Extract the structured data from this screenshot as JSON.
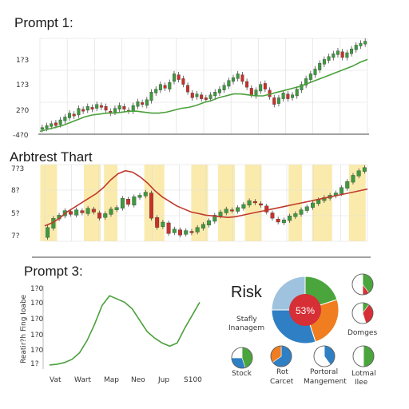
{
  "colors": {
    "up": "#3f9a3f",
    "down": "#c8312b",
    "trend_green": "#4aa03a",
    "trend_red": "#c0392b",
    "highlight": "#f9e79f",
    "grid": "#dddddd",
    "pie_blue": "#2f7fc4",
    "pie_lightblue": "#9fc3df",
    "pie_green": "#4aa63c",
    "pie_orange": "#f07d1f",
    "pie_red": "#d62f36"
  },
  "chart_data": [
    {
      "type": "candlestick",
      "title": "Prompt 1:",
      "ytick_labels": [
        "1?3",
        "1?3",
        "2?0",
        "-4?0"
      ],
      "ylim": [
        0,
        100
      ],
      "candles": [
        {
          "o": 5,
          "c": 7
        },
        {
          "o": 6,
          "c": 9
        },
        {
          "o": 8,
          "c": 11
        },
        {
          "o": 12,
          "c": 9
        },
        {
          "o": 10,
          "c": 15
        },
        {
          "o": 14,
          "c": 18
        },
        {
          "o": 17,
          "c": 22
        },
        {
          "o": 21,
          "c": 19
        },
        {
          "o": 20,
          "c": 27
        },
        {
          "o": 26,
          "c": 24
        },
        {
          "o": 25,
          "c": 29
        },
        {
          "o": 28,
          "c": 26
        },
        {
          "o": 27,
          "c": 31
        },
        {
          "o": 30,
          "c": 28
        },
        {
          "o": 29,
          "c": 25
        },
        {
          "o": 24,
          "c": 22
        },
        {
          "o": 23,
          "c": 27
        },
        {
          "o": 26,
          "c": 30
        },
        {
          "o": 29,
          "c": 26
        },
        {
          "o": 25,
          "c": 24
        },
        {
          "o": 24,
          "c": 30
        },
        {
          "o": 29,
          "c": 34
        },
        {
          "o": 33,
          "c": 31
        },
        {
          "o": 30,
          "c": 36
        },
        {
          "o": 35,
          "c": 44
        },
        {
          "o": 43,
          "c": 47
        },
        {
          "o": 46,
          "c": 52
        },
        {
          "o": 51,
          "c": 48
        },
        {
          "o": 47,
          "c": 54
        },
        {
          "o": 55,
          "c": 63
        },
        {
          "o": 62,
          "c": 57
        },
        {
          "o": 58,
          "c": 52
        },
        {
          "o": 51,
          "c": 44
        },
        {
          "o": 43,
          "c": 38
        },
        {
          "o": 39,
          "c": 42
        },
        {
          "o": 41,
          "c": 37
        },
        {
          "o": 38,
          "c": 36
        },
        {
          "o": 37,
          "c": 41
        },
        {
          "o": 40,
          "c": 44
        },
        {
          "o": 43,
          "c": 47
        },
        {
          "o": 46,
          "c": 51
        },
        {
          "o": 50,
          "c": 56
        },
        {
          "o": 55,
          "c": 59
        },
        {
          "o": 58,
          "c": 63
        },
        {
          "o": 62,
          "c": 55
        },
        {
          "o": 55,
          "c": 49
        },
        {
          "o": 48,
          "c": 41
        },
        {
          "o": 40,
          "c": 46
        },
        {
          "o": 45,
          "c": 52
        },
        {
          "o": 53,
          "c": 47
        },
        {
          "o": 46,
          "c": 39
        },
        {
          "o": 38,
          "c": 31
        },
        {
          "o": 32,
          "c": 38
        },
        {
          "o": 37,
          "c": 43
        },
        {
          "o": 42,
          "c": 37
        },
        {
          "o": 38,
          "c": 41
        },
        {
          "o": 40,
          "c": 47
        },
        {
          "o": 46,
          "c": 52
        },
        {
          "o": 51,
          "c": 58
        },
        {
          "o": 57,
          "c": 63
        },
        {
          "o": 62,
          "c": 68
        },
        {
          "o": 67,
          "c": 74
        },
        {
          "o": 73,
          "c": 78
        },
        {
          "o": 77,
          "c": 81
        },
        {
          "o": 80,
          "c": 84
        },
        {
          "o": 83,
          "c": 87
        },
        {
          "o": 86,
          "c": 80
        },
        {
          "o": 80,
          "c": 85
        },
        {
          "o": 84,
          "c": 89
        },
        {
          "o": 88,
          "c": 93
        },
        {
          "o": 92,
          "c": 95
        },
        {
          "o": 94,
          "c": 97
        }
      ],
      "trend": [
        3,
        5,
        7,
        9,
        12,
        15,
        18,
        20,
        21,
        22,
        22,
        23,
        24,
        24,
        23,
        22,
        22,
        23,
        25,
        27,
        28,
        30,
        33,
        35,
        38,
        40,
        42,
        42,
        41,
        40,
        40,
        42,
        44,
        46,
        48,
        50,
        53,
        56,
        59,
        62,
        65,
        68,
        71,
        75,
        78
      ]
    },
    {
      "type": "candlestick",
      "title": "Arbtrest Thart",
      "ytick_labels": [
        "7?3",
        "8?",
        "5?",
        "7?"
      ],
      "ylim": [
        0,
        100
      ],
      "highlight_bands": [
        [
          0.02,
          0.07
        ],
        [
          0.15,
          0.2
        ],
        [
          0.21,
          0.25
        ],
        [
          0.33,
          0.39
        ],
        [
          0.47,
          0.52
        ],
        [
          0.55,
          0.6
        ],
        [
          0.63,
          0.68
        ],
        [
          0.76,
          0.8
        ],
        [
          0.83,
          0.89
        ],
        [
          0.94,
          0.99
        ]
      ],
      "candles": [
        {
          "o": 5,
          "c": 18
        },
        {
          "o": 17,
          "c": 30
        },
        {
          "o": 29,
          "c": 34
        },
        {
          "o": 33,
          "c": 40
        },
        {
          "o": 39,
          "c": 35
        },
        {
          "o": 34,
          "c": 41
        },
        {
          "o": 40,
          "c": 37
        },
        {
          "o": 36,
          "c": 43
        },
        {
          "o": 42,
          "c": 38
        },
        {
          "o": 37,
          "c": 30
        },
        {
          "o": 31,
          "c": 36
        },
        {
          "o": 35,
          "c": 42
        },
        {
          "o": 41,
          "c": 44
        },
        {
          "o": 43,
          "c": 56
        },
        {
          "o": 55,
          "c": 48
        },
        {
          "o": 47,
          "c": 58
        },
        {
          "o": 57,
          "c": 60
        },
        {
          "o": 59,
          "c": 64
        },
        {
          "o": 63,
          "c": 30
        },
        {
          "o": 31,
          "c": 18
        },
        {
          "o": 19,
          "c": 25
        },
        {
          "o": 24,
          "c": 10
        },
        {
          "o": 11,
          "c": 16
        },
        {
          "o": 15,
          "c": 8
        },
        {
          "o": 9,
          "c": 14
        },
        {
          "o": 13,
          "c": 11
        },
        {
          "o": 12,
          "c": 18
        },
        {
          "o": 17,
          "c": 22
        },
        {
          "o": 21,
          "c": 27
        },
        {
          "o": 26,
          "c": 34
        },
        {
          "o": 33,
          "c": 38
        },
        {
          "o": 37,
          "c": 42
        },
        {
          "o": 41,
          "c": 40
        },
        {
          "o": 39,
          "c": 44
        },
        {
          "o": 43,
          "c": 48
        },
        {
          "o": 47,
          "c": 53
        },
        {
          "o": 52,
          "c": 50
        },
        {
          "o": 49,
          "c": 47
        },
        {
          "o": 46,
          "c": 38
        },
        {
          "o": 37,
          "c": 30
        },
        {
          "o": 29,
          "c": 25
        },
        {
          "o": 24,
          "c": 28
        },
        {
          "o": 27,
          "c": 33
        },
        {
          "o": 32,
          "c": 36
        },
        {
          "o": 35,
          "c": 41
        },
        {
          "o": 40,
          "c": 45
        },
        {
          "o": 44,
          "c": 50
        },
        {
          "o": 49,
          "c": 54
        },
        {
          "o": 53,
          "c": 57
        },
        {
          "o": 56,
          "c": 60
        },
        {
          "o": 59,
          "c": 63
        },
        {
          "o": 62,
          "c": 70
        },
        {
          "o": 69,
          "c": 78
        },
        {
          "o": 77,
          "c": 86
        },
        {
          "o": 85,
          "c": 92
        },
        {
          "o": 91,
          "c": 96
        }
      ],
      "trend": [
        20,
        24,
        30,
        38,
        44,
        50,
        56,
        62,
        70,
        80,
        88,
        92,
        90,
        84,
        76,
        66,
        58,
        52,
        46,
        42,
        38,
        36,
        34,
        33,
        32,
        31,
        32,
        34,
        36,
        38,
        40,
        42,
        44,
        46,
        48,
        50,
        52,
        54,
        56,
        58,
        60,
        62,
        64,
        66,
        68
      ]
    },
    {
      "type": "line",
      "title": "Prompt 3:",
      "ylabel": "Reatir?h Fing Ioabe",
      "ytick_labels": [
        "1?0",
        "1?0",
        "1?0",
        "1?0",
        "1?0",
        "1?"
      ],
      "categories": [
        "Vat",
        "Wart",
        "Map",
        "Neo",
        "Jup",
        "S100"
      ],
      "x": [
        0,
        5,
        10,
        15,
        20,
        25,
        30,
        35,
        40,
        45,
        50,
        55,
        60,
        65,
        70,
        75,
        80,
        85,
        90,
        95,
        100
      ],
      "values": [
        5,
        6,
        8,
        12,
        20,
        35,
        55,
        78,
        90,
        86,
        82,
        74,
        60,
        46,
        38,
        32,
        28,
        32,
        50,
        66,
        82
      ]
    },
    {
      "type": "pie",
      "title": "Risk",
      "center_label": "53%",
      "slices": [
        {
          "label": "",
          "value": 20,
          "color": "#4aa63c"
        },
        {
          "label": "",
          "value": 25,
          "color": "#f07d1f"
        },
        {
          "label": "",
          "value": 30,
          "color": "#2f7fc4"
        },
        {
          "label": "",
          "value": 25,
          "color": "#9fc3df"
        }
      ],
      "inner_value": 53
    }
  ],
  "risk_labels": {
    "left": [
      "Stafly",
      "Inanagem"
    ],
    "right": "Domges"
  },
  "mini_pies": [
    {
      "label_lines": [
        "Stock"
      ],
      "green": 0.45,
      "blue": 0.3,
      "white": 0.25
    },
    {
      "label_lines": [
        "Rot",
        "Carcet"
      ],
      "green": 0.0,
      "blue": 0.65,
      "orange": 0.35,
      "white": 0.0
    },
    {
      "label_lines": [
        "Portoral",
        "Mangement"
      ],
      "green": 0.0,
      "blue": 0.4,
      "white": 0.6
    },
    {
      "label_lines": [
        "Lotmal",
        "Ilee"
      ],
      "green": 0.5,
      "blue": 0.0,
      "white": 0.5
    }
  ],
  "top_mini_pies": [
    {
      "green": 0.4,
      "red": 0.1,
      "white": 0.5
    },
    {
      "green": 0.1,
      "red": 0.35,
      "white": 0.55
    }
  ]
}
